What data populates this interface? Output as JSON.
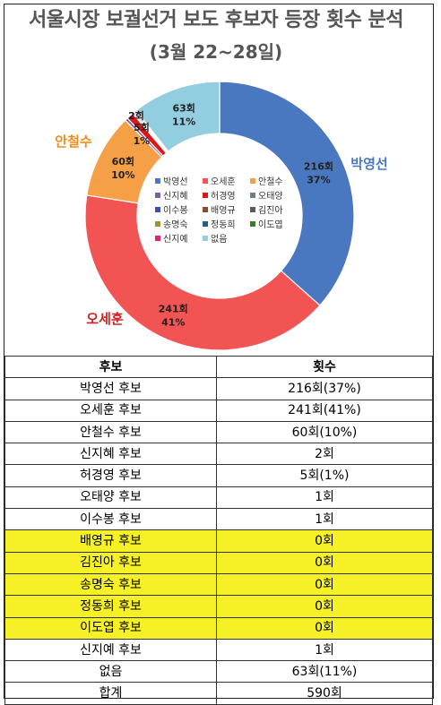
{
  "title": "서울시장 보궐선거 보도 후보자 등장 횟수 분석",
  "subtitle": "(3월 22~28일)",
  "chart_data": {
    "type": "pie",
    "donut": true,
    "slices": [
      {
        "name": "박영선",
        "value": 216,
        "color": "#4a78c0",
        "value_label": "216회",
        "pct_label": "37%",
        "name_label": "박영선",
        "name_color": "#4a78c0"
      },
      {
        "name": "오세훈",
        "value": 241,
        "color": "#f25353",
        "value_label": "241회",
        "pct_label": "41%",
        "name_label": "오세훈",
        "name_color": "#d42020"
      },
      {
        "name": "안철수",
        "value": 60,
        "color": "#f5a046",
        "value_label": "60회",
        "pct_label": "10%",
        "name_label": "안철수",
        "name_color": "#f08c1e"
      },
      {
        "name": "신지혜",
        "value": 2,
        "color": "#7e5ca8",
        "value_label": "2회",
        "pct_label": ""
      },
      {
        "name": "허경영",
        "value": 5,
        "color": "#e01515",
        "value_label": "5회",
        "pct_label": "1%"
      },
      {
        "name": "오태양",
        "value": 1,
        "color": "#6f7f8a",
        "value_label": "",
        "pct_label": ""
      },
      {
        "name": "이수봉",
        "value": 1,
        "color": "#3a4fb0",
        "value_label": "",
        "pct_label": ""
      },
      {
        "name": "배영규",
        "value": 0,
        "color": "#8b4a2a",
        "value_label": "",
        "pct_label": ""
      },
      {
        "name": "김진아",
        "value": 0,
        "color": "#555a60",
        "value_label": "",
        "pct_label": ""
      },
      {
        "name": "송명숙",
        "value": 0,
        "color": "#a0932e",
        "value_label": "",
        "pct_label": ""
      },
      {
        "name": "정동희",
        "value": 0,
        "color": "#1f5f8a",
        "value_label": "",
        "pct_label": ""
      },
      {
        "name": "이도엽",
        "value": 0,
        "color": "#3e7a2c",
        "value_label": "",
        "pct_label": ""
      },
      {
        "name": "신지예",
        "value": 1,
        "color": "#e0207a",
        "value_label": "",
        "pct_label": ""
      },
      {
        "name": "없음",
        "value": 63,
        "color": "#92cde0",
        "value_label": "63회",
        "pct_label": "11%"
      }
    ],
    "legend_placement": "center"
  },
  "table": {
    "headers": [
      "후보",
      "횟수"
    ],
    "rows": [
      {
        "name": "박영선 후보",
        "count": "216회(37%)",
        "highlight": false
      },
      {
        "name": "오세훈 후보",
        "count": "241회(41%)",
        "highlight": false
      },
      {
        "name": "안철수 후보",
        "count": "60회(10%)",
        "highlight": false
      },
      {
        "name": "신지혜 후보",
        "count": "2회",
        "highlight": false
      },
      {
        "name": "허경영 후보",
        "count": "5회(1%)",
        "highlight": false
      },
      {
        "name": "오태양 후보",
        "count": "1회",
        "highlight": false
      },
      {
        "name": "이수봉 후보",
        "count": "1회",
        "highlight": false
      },
      {
        "name": "배영규 후보",
        "count": "0회",
        "highlight": true
      },
      {
        "name": "김진아 후보",
        "count": "0회",
        "highlight": true
      },
      {
        "name": "송명숙 후보",
        "count": "0회",
        "highlight": true
      },
      {
        "name": "정동희 후보",
        "count": "0회",
        "highlight": true
      },
      {
        "name": "이도엽 후보",
        "count": "0회",
        "highlight": true
      },
      {
        "name": "신지예 후보",
        "count": "1회",
        "highlight": false
      },
      {
        "name": "없음",
        "count": "63회(11%)",
        "highlight": false
      },
      {
        "name": "합계",
        "count": "590회",
        "highlight": false
      }
    ]
  }
}
